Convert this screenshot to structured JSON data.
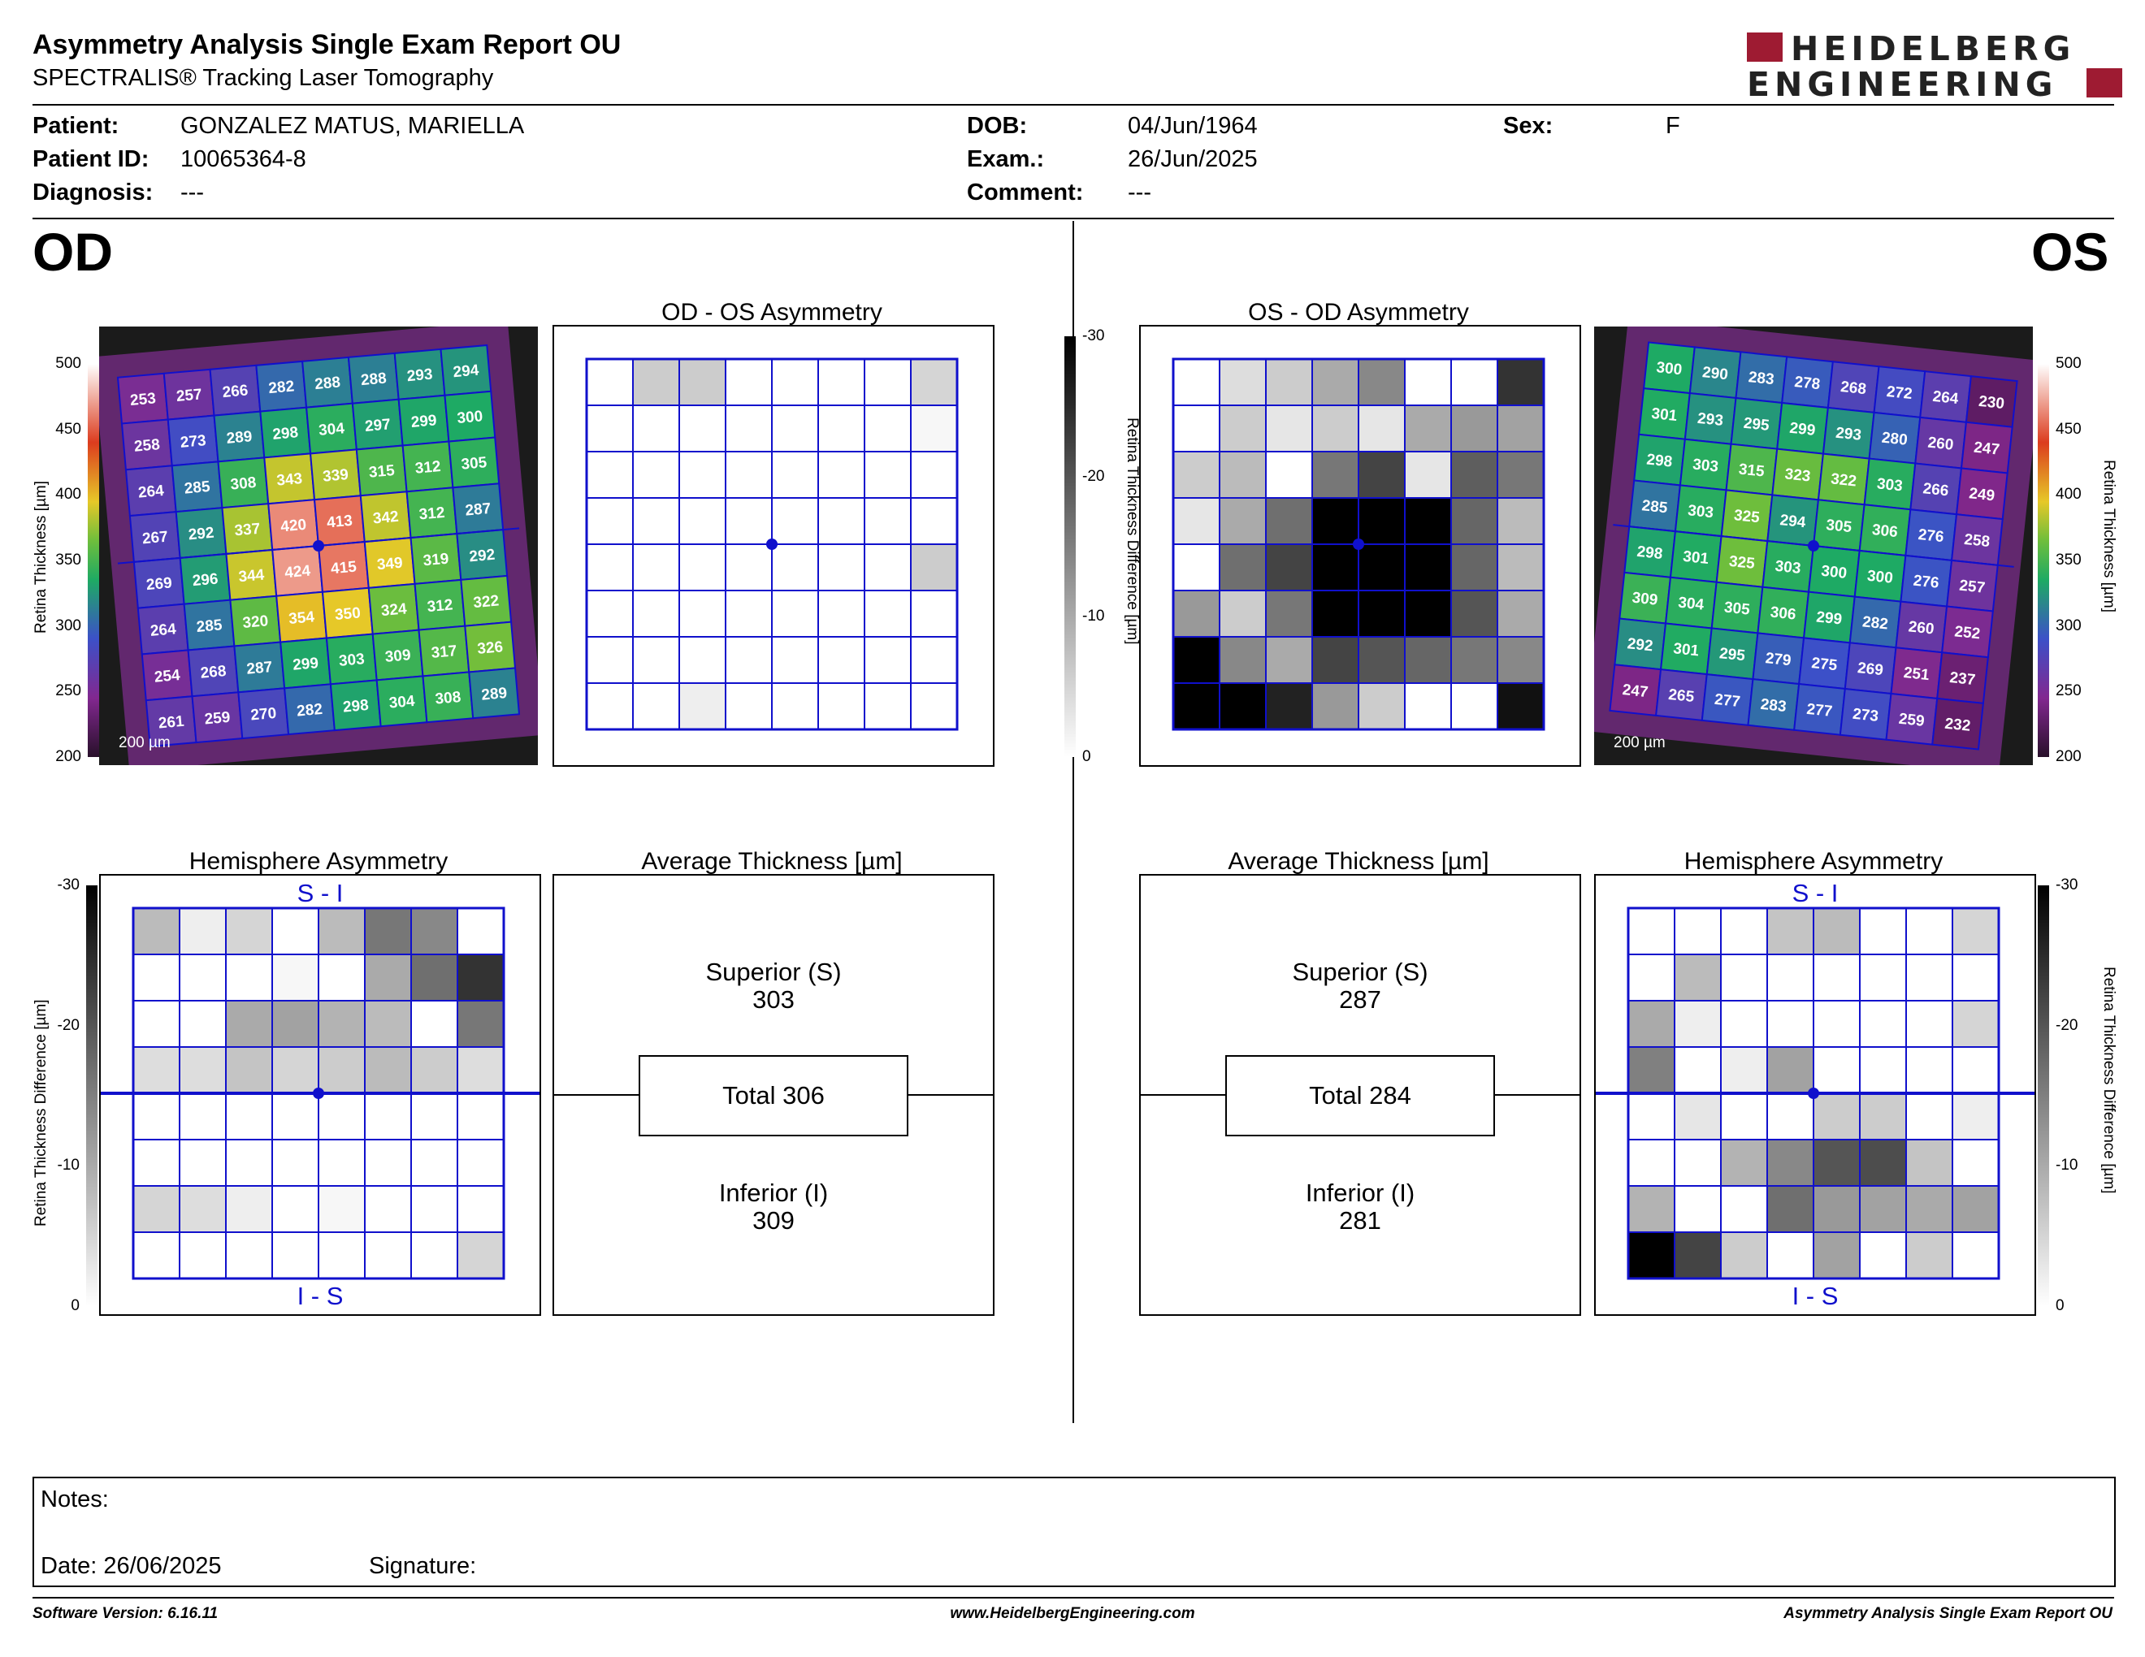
{
  "header": {
    "title": "Asymmetry Analysis Single Exam Report OU",
    "subtitle": "SPECTRALIS® Tracking Laser Tomography",
    "logo_line1": "HEIDELBERG",
    "logo_line2": "ENGINEERING",
    "brand_color": "#9e1b32"
  },
  "patient": {
    "patient_label": "Patient:",
    "patient_name": "GONZALEZ MATUS, MARIELLA",
    "id_label": "Patient ID:",
    "patient_id": "10065364-8",
    "diagnosis_label": "Diagnosis:",
    "diagnosis": "---",
    "dob_label": "DOB:",
    "dob": "04/Jun/1964",
    "exam_label": "Exam.:",
    "exam": "26/Jun/2025",
    "comment_label": "Comment:",
    "comment": "---",
    "sex_label": "Sex:",
    "sex": "F"
  },
  "od": {
    "eye_label": "OD",
    "scale_bar": "200 µm",
    "thickness_grid": [
      [
        253,
        257,
        266,
        282,
        288,
        288,
        293,
        294
      ],
      [
        258,
        273,
        289,
        298,
        304,
        297,
        299,
        300
      ],
      [
        264,
        285,
        308,
        343,
        339,
        315,
        312,
        305
      ],
      [
        267,
        292,
        337,
        420,
        413,
        342,
        312,
        287
      ],
      [
        269,
        296,
        344,
        424,
        415,
        349,
        319,
        292
      ],
      [
        264,
        285,
        320,
        354,
        350,
        324,
        312,
        322
      ],
      [
        254,
        268,
        287,
        299,
        303,
        309,
        317,
        326
      ],
      [
        261,
        259,
        270,
        282,
        298,
        304,
        308,
        289
      ]
    ],
    "asym_title": "OD - OS Asymmetry",
    "asym_grid": [
      [
        0,
        6,
        6,
        0,
        0,
        0,
        0,
        5
      ],
      [
        0,
        0,
        0,
        0,
        0,
        0,
        0,
        1
      ],
      [
        0,
        0,
        0,
        0,
        0,
        0,
        0,
        0
      ],
      [
        0,
        0,
        0,
        0,
        0,
        0,
        0,
        0
      ],
      [
        0,
        0,
        0,
        0,
        0,
        0,
        0,
        6
      ],
      [
        0,
        0,
        0,
        0,
        0,
        0,
        0,
        0
      ],
      [
        0,
        0,
        0,
        0,
        0,
        0,
        0,
        0
      ],
      [
        0,
        0,
        2,
        0,
        0,
        0,
        0,
        0
      ]
    ],
    "hemi_title": "Hemisphere Asymmetry",
    "hemi_top": "S - I",
    "hemi_bottom": "I - S",
    "hemi_grid": [
      [
        8,
        2,
        5,
        0,
        8,
        16,
        14,
        0
      ],
      [
        0,
        0,
        0,
        1,
        0,
        10,
        17,
        24
      ],
      [
        0,
        0,
        10,
        11,
        9,
        8,
        0,
        16
      ],
      [
        4,
        4,
        7,
        5,
        6,
        8,
        6,
        4
      ],
      [
        0,
        0,
        0,
        0,
        0,
        0,
        0,
        0
      ],
      [
        0,
        0,
        0,
        0,
        0,
        0,
        0,
        0
      ],
      [
        5,
        4,
        2,
        0,
        1,
        0,
        0,
        0
      ],
      [
        0,
        0,
        0,
        0,
        0,
        0,
        0,
        5
      ]
    ],
    "avg_title": "Average Thickness [µm]",
    "superior_label": "Superior (S)",
    "superior": "303",
    "total": "Total 306",
    "inferior_label": "Inferior (I)",
    "inferior": "309"
  },
  "os": {
    "eye_label": "OS",
    "scale_bar": "200 µm",
    "thickness_grid": [
      [
        300,
        290,
        283,
        278,
        268,
        272,
        264,
        230
      ],
      [
        301,
        293,
        295,
        299,
        293,
        280,
        260,
        247
      ],
      [
        298,
        303,
        315,
        323,
        322,
        303,
        266,
        249
      ],
      [
        285,
        303,
        325,
        294,
        305,
        306,
        276,
        258
      ],
      [
        298,
        301,
        325,
        303,
        300,
        300,
        276,
        257
      ],
      [
        309,
        304,
        305,
        306,
        299,
        282,
        260,
        252
      ],
      [
        292,
        301,
        295,
        279,
        275,
        269,
        251,
        237
      ],
      [
        247,
        265,
        277,
        283,
        277,
        273,
        259,
        232
      ]
    ],
    "asym_title": "OS - OD Asymmetry",
    "asym_grid": [
      [
        0,
        4,
        6,
        10,
        14,
        0,
        0,
        24
      ],
      [
        0,
        6,
        3,
        6,
        3,
        10,
        12,
        11
      ],
      [
        6,
        8,
        0,
        16,
        22,
        3,
        19,
        16
      ],
      [
        3,
        10,
        17,
        30,
        30,
        30,
        18,
        8
      ],
      [
        0,
        17,
        22,
        30,
        30,
        30,
        18,
        8
      ],
      [
        12,
        6,
        16,
        30,
        30,
        30,
        20,
        10
      ],
      [
        30,
        14,
        10,
        22,
        20,
        18,
        16,
        14
      ],
      [
        30,
        30,
        26,
        12,
        6,
        0,
        0,
        28
      ]
    ],
    "hemi_title": "Hemisphere Asymmetry",
    "hemi_top": "S - I",
    "hemi_bottom": "I - S",
    "hemi_grid": [
      [
        0,
        0,
        0,
        7,
        8,
        0,
        0,
        5
      ],
      [
        0,
        8,
        0,
        0,
        0,
        0,
        0,
        0
      ],
      [
        10,
        2,
        0,
        0,
        0,
        0,
        0,
        5
      ],
      [
        15,
        0,
        2,
        11,
        0,
        0,
        0,
        0
      ],
      [
        0,
        3,
        0,
        0,
        6,
        6,
        0,
        2
      ],
      [
        0,
        0,
        9,
        14,
        20,
        21,
        7,
        0
      ],
      [
        9,
        0,
        0,
        17,
        12,
        11,
        10,
        11
      ],
      [
        30,
        22,
        6,
        0,
        11,
        0,
        6,
        0
      ]
    ],
    "avg_title": "Average Thickness [µm]",
    "superior_label": "Superior (S)",
    "superior": "287",
    "total": "Total 284",
    "inferior_label": "Inferior (I)",
    "inferior": "281"
  },
  "scales": {
    "thickness_axis_label": "Retina Thickness [µm]",
    "thickness_ticks": [
      "500",
      "450",
      "400",
      "350",
      "300",
      "250",
      "200"
    ],
    "diff_axis_label": "Retina Thickness Difference [µm]",
    "diff_ticks": [
      "-30",
      "-20",
      "-10",
      "0"
    ]
  },
  "notes": {
    "notes_label": "Notes:",
    "date_label": "Date: 26/06/2025",
    "signature_label": "Signature:"
  },
  "footer": {
    "software_version": "Software Version: 6.16.11",
    "website": "www.HeidelbergEngineering.com",
    "report_name": "Asymmetry Analysis Single Exam Report OU"
  }
}
